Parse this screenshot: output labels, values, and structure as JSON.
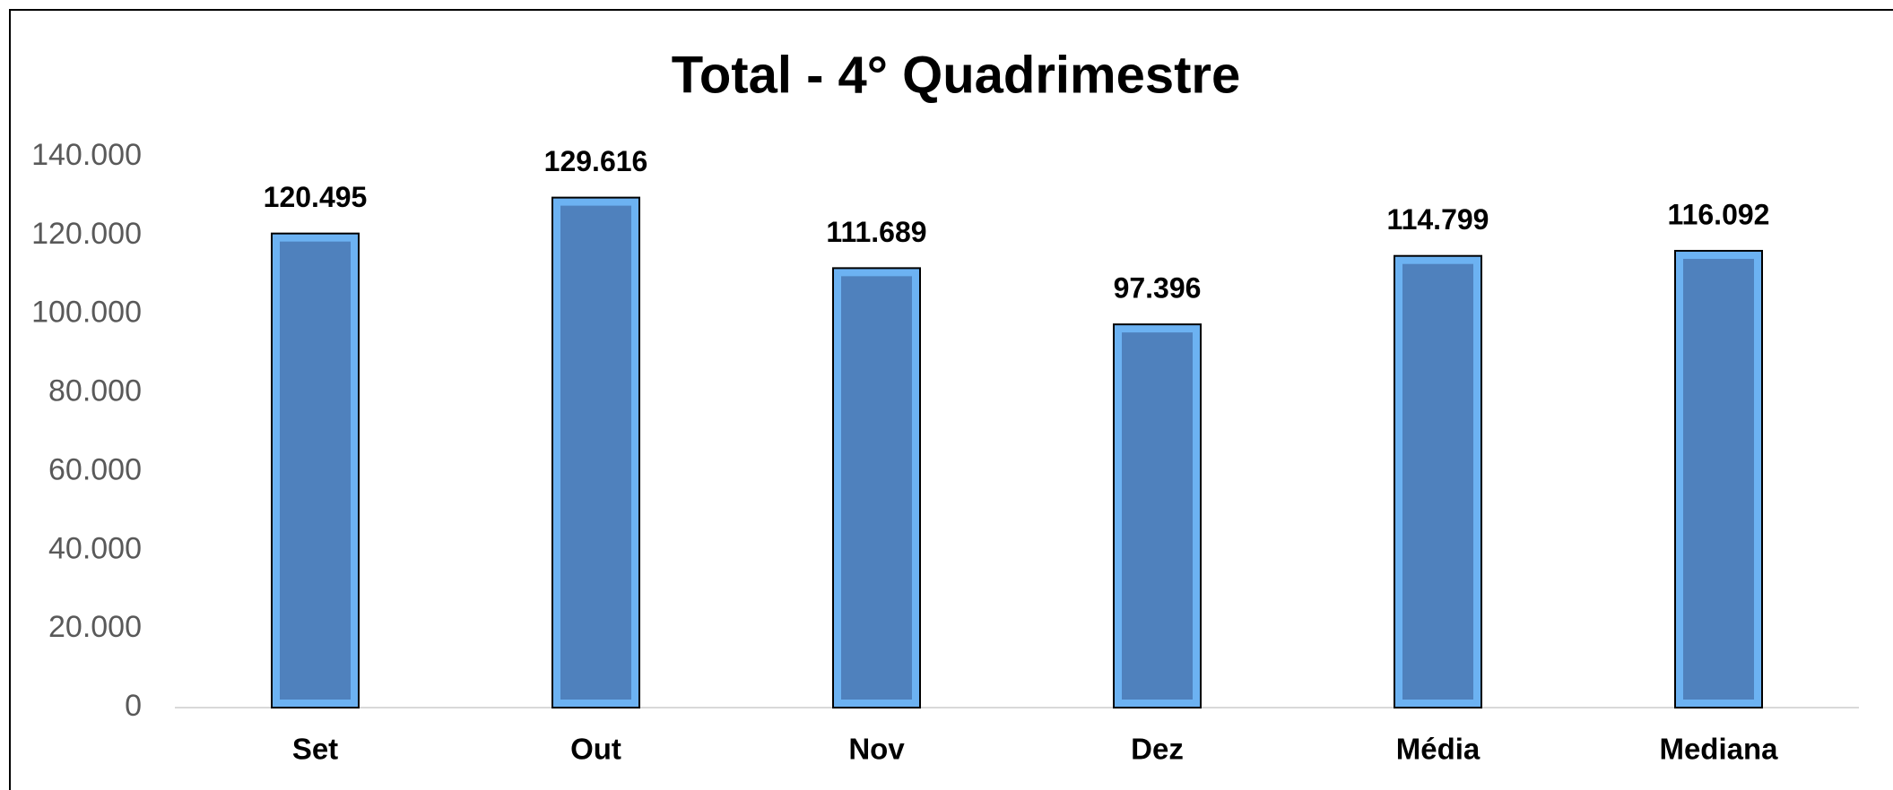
{
  "chart_data": {
    "type": "bar",
    "title": "Total - 4° Quadrimestre",
    "categories": [
      "Set",
      "Out",
      "Nov",
      "Dez",
      "Média",
      "Mediana"
    ],
    "values": [
      120495,
      129616,
      111689,
      97396,
      114799,
      116092
    ],
    "value_labels": [
      "120.495",
      "129.616",
      "111.689",
      "97.396",
      "114.799",
      "116.092"
    ],
    "color": "#4f81bd",
    "edge_color": "#6cb2f2",
    "ylim": [
      0,
      140000
    ],
    "yticks": [
      0,
      {
        "value": 20000,
        "label": "20.000"
      },
      {
        "value": 40000,
        "label": "40.000"
      },
      {
        "value": 60000,
        "label": "60.000"
      },
      {
        "value": 80000,
        "label": "80.000"
      },
      {
        "value": 100000,
        "label": "100.000"
      },
      {
        "value": 120000,
        "label": "120.000"
      },
      {
        "value": 140000,
        "label": "140.000"
      }
    ],
    "grid": false
  }
}
